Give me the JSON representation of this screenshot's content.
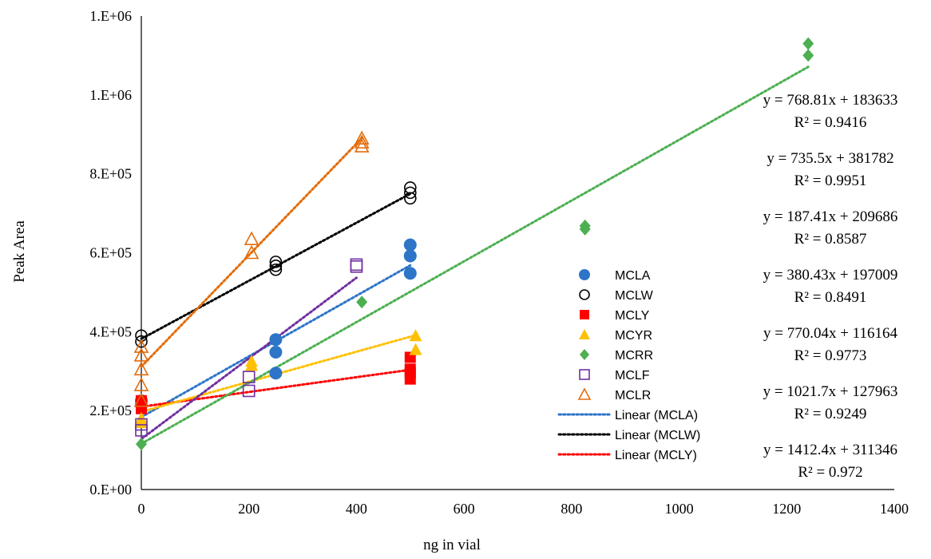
{
  "chart_data": {
    "type": "scatter",
    "title": "",
    "xlabel": "ng in vial",
    "ylabel": "Peak Area",
    "xlim": [
      0,
      1400
    ],
    "ylim": [
      0,
      1200000
    ],
    "x_ticks": [
      0,
      200,
      400,
      600,
      800,
      1000,
      1200,
      1400
    ],
    "y_ticks": [
      {
        "value": 0,
        "label": "0.E+00"
      },
      {
        "value": 200000,
        "label": "2.E+05"
      },
      {
        "value": 400000,
        "label": "4.E+05"
      },
      {
        "value": 600000,
        "label": "6.E+05"
      },
      {
        "value": 800000,
        "label": "8.E+05"
      },
      {
        "value": 1000000,
        "label": "1.E+06"
      },
      {
        "value": 1200000,
        "label": "1.E+06"
      }
    ],
    "grid": false,
    "legend_position": "right",
    "series": [
      {
        "name": "MCLA",
        "marker": "circle-filled",
        "color": "#2E75C8",
        "points": [
          [
            0,
            215000
          ],
          [
            0,
            225000
          ],
          [
            250,
            295000
          ],
          [
            250,
            348000
          ],
          [
            250,
            380000
          ],
          [
            500,
            548000
          ],
          [
            500,
            592000
          ],
          [
            500,
            620000
          ]
        ]
      },
      {
        "name": "MCLW",
        "marker": "circle-open",
        "color": "#000000",
        "points": [
          [
            0,
            375000
          ],
          [
            0,
            390000
          ],
          [
            250,
            557000
          ],
          [
            250,
            567000
          ],
          [
            250,
            577000
          ],
          [
            500,
            738000
          ],
          [
            500,
            752000
          ],
          [
            500,
            765000
          ]
        ]
      },
      {
        "name": "MCLY",
        "marker": "square-filled",
        "color": "#FF0000",
        "points": [
          [
            0,
            205000
          ],
          [
            0,
            215000
          ],
          [
            0,
            225000
          ],
          [
            500,
            280000
          ],
          [
            500,
            295000
          ],
          [
            500,
            305000
          ],
          [
            500,
            335000
          ]
        ]
      },
      {
        "name": "MCYR",
        "marker": "triangle-filled",
        "color": "#FFC000",
        "points": [
          [
            0,
            170000
          ],
          [
            0,
            180000
          ],
          [
            205,
            315000
          ],
          [
            205,
            325000
          ],
          [
            510,
            355000
          ],
          [
            510,
            390000
          ]
        ]
      },
      {
        "name": "MCRR",
        "marker": "diamond-filled",
        "color": "#4CAF50",
        "points": [
          [
            0,
            115000
          ],
          [
            410,
            475000
          ],
          [
            825,
            660000
          ],
          [
            825,
            668000
          ],
          [
            1240,
            1100000
          ],
          [
            1240,
            1130000
          ]
        ]
      },
      {
        "name": "MCLF",
        "marker": "square-open",
        "color": "#7030A0",
        "points": [
          [
            0,
            150000
          ],
          [
            0,
            165000
          ],
          [
            200,
            250000
          ],
          [
            200,
            285000
          ],
          [
            400,
            565000
          ],
          [
            400,
            570000
          ]
        ]
      },
      {
        "name": "MCLR",
        "marker": "triangle-open",
        "color": "#E46C0A",
        "points": [
          [
            0,
            225000
          ],
          [
            0,
            265000
          ],
          [
            0,
            305000
          ],
          [
            0,
            340000
          ],
          [
            0,
            362000
          ],
          [
            205,
            600000
          ],
          [
            205,
            635000
          ],
          [
            410,
            870000
          ],
          [
            410,
            880000
          ],
          [
            410,
            890000
          ]
        ]
      }
    ],
    "trendlines": [
      {
        "name": "Linear (MCLA)",
        "color": "#2E75C8",
        "slope": 768.81,
        "intercept": 183633,
        "x_range": [
          0,
          500
        ],
        "in_legend": true
      },
      {
        "name": "Linear (MCLW)",
        "color": "#000000",
        "slope": 735.5,
        "intercept": 381782,
        "x_range": [
          0,
          500
        ],
        "in_legend": true
      },
      {
        "name": "Linear (MCLY)",
        "color": "#FF0000",
        "slope": 187.41,
        "intercept": 209686,
        "x_range": [
          0,
          500
        ],
        "in_legend": true
      },
      {
        "name": "Linear (MCYR)",
        "color": "#FFC000",
        "slope": 380.43,
        "intercept": 197009,
        "x_range": [
          0,
          510
        ],
        "in_legend": false
      },
      {
        "name": "Linear (MCRR)",
        "color": "#4CAF50",
        "slope": 770.04,
        "intercept": 116164,
        "x_range": [
          0,
          1240
        ],
        "in_legend": false
      },
      {
        "name": "Linear (MCLF)",
        "color": "#7030A0",
        "slope": 1021.7,
        "intercept": 127963,
        "x_range": [
          0,
          400
        ],
        "in_legend": false
      },
      {
        "name": "Linear (MCLR)",
        "color": "#E46C0A",
        "slope": 1412.4,
        "intercept": 311346,
        "x_range": [
          0,
          410
        ],
        "in_legend": false
      }
    ],
    "equations": [
      {
        "eq": "y = 768.81x + 183633",
        "r2": "R² = 0.9416"
      },
      {
        "eq": "y = 735.5x + 381782",
        "r2": "R² = 0.9951"
      },
      {
        "eq": "y = 187.41x + 209686",
        "r2": "R² = 0.8587"
      },
      {
        "eq": "y = 380.43x + 197009",
        "r2": "R² = 0.8491"
      },
      {
        "eq": "y = 770.04x + 116164",
        "r2": "R² = 0.9773"
      },
      {
        "eq": "y = 1021.7x + 127963",
        "r2": "R² = 0.9249"
      },
      {
        "eq": "y = 1412.4x + 311346",
        "r2": "R² = 0.972"
      }
    ]
  }
}
